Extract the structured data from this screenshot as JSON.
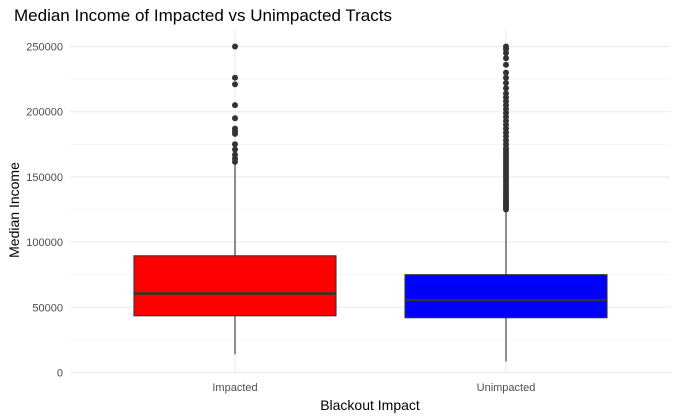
{
  "chart_data": {
    "type": "box",
    "title": "Median Income of Impacted vs Unimpacted Tracts",
    "xlabel": "Blackout Impact",
    "ylabel": "Median Income",
    "ylim": [
      0,
      250000
    ],
    "yticks": [
      0,
      50000,
      100000,
      150000,
      200000,
      250000
    ],
    "ytick_labels": [
      "0",
      "50000",
      "100000",
      "150000",
      "200000",
      "250000"
    ],
    "grid": true,
    "legend": "none",
    "categories": [
      "Impacted",
      "Unimpacted"
    ],
    "boxes": [
      {
        "category": "Impacted",
        "color": "#ff0000",
        "whisker_low": 14000,
        "q1": 43500,
        "median": 60500,
        "q3": 89500,
        "whisker_high": 160000,
        "outliers": [
          161500,
          164000,
          167000,
          171000,
          175000,
          183000,
          185000,
          187000,
          195000,
          205000,
          221000,
          226000,
          250000
        ]
      },
      {
        "category": "Unimpacted",
        "color": "#0000ff",
        "whisker_low": 8500,
        "q1": 42000,
        "median": 55500,
        "q3": 75000,
        "whisker_high": 124000,
        "outliers": [
          125000,
          126500,
          128000,
          129500,
          131000,
          132500,
          134000,
          136000,
          138000,
          140000,
          142000,
          144000,
          146000,
          148000,
          150000,
          152000,
          154000,
          156000,
          158000,
          160000,
          162000,
          164000,
          166000,
          168000,
          170000,
          172000,
          175000,
          178000,
          181000,
          184000,
          187000,
          190000,
          193000,
          196000,
          199000,
          202000,
          205000,
          208000,
          211000,
          214000,
          218000,
          222000,
          226000,
          230000,
          236000,
          241000,
          245000,
          248000,
          250000
        ]
      }
    ]
  }
}
